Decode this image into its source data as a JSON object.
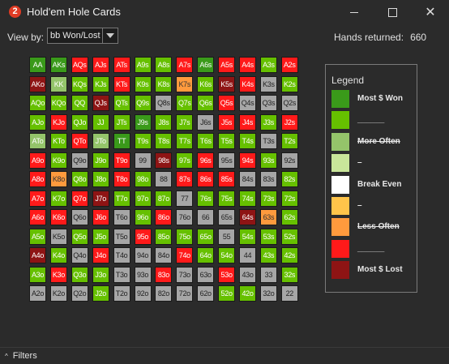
{
  "window": {
    "title": "Hold'em Hole Cards",
    "app_icon": "2"
  },
  "toolbar": {
    "view_by_label": "View by:",
    "view_by_value": "bb Won/Lost",
    "hands_label": "Hands returned:",
    "hands_value": "660"
  },
  "grid": {
    "rows": [
      [
        "AA mw",
        "AKs mw",
        "AQs l",
        "AJs l",
        "ATs l",
        "A9s w",
        "A8s w",
        "A7s l",
        "A6s mw",
        "A5s l",
        "A4s l",
        "A3s w",
        "A2s l"
      ],
      [
        "AKo ml",
        "KK mo",
        "KQs w",
        "KJs w",
        "KTs l",
        "K9s w",
        "K8s w",
        "K7s lo",
        "K6s w",
        "K5s ml",
        "K4s l",
        "K3s gr",
        "K2s w"
      ],
      [
        "AQo w",
        "KQo w",
        "QQ w",
        "QJs ml",
        "QTs w",
        "Q9s w",
        "Q8s gr",
        "Q7s w",
        "Q6s w",
        "Q5s l",
        "Q4s gr",
        "Q3s gr",
        "Q2s gr"
      ],
      [
        "AJo w",
        "KJo l",
        "QJo w",
        "JJ w",
        "JTs w",
        "J9s mw",
        "J8s w",
        "J7s w",
        "J6s gr",
        "J5s l",
        "J4s l",
        "J3s w",
        "J2s l"
      ],
      [
        "ATo mo",
        "KTo w",
        "QTo l",
        "JTo mo",
        "TT mw",
        "T9s w",
        "T8s w",
        "T7s w",
        "T6s w",
        "T5s w",
        "T4s w",
        "T3s gr",
        "T2s w"
      ],
      [
        "A9o l",
        "K9o w",
        "Q9o gr",
        "J9o w",
        "T9o l",
        "99 gr",
        "98s ml",
        "97s w",
        "96s l",
        "95s gr",
        "94s l",
        "93s w",
        "92s gr"
      ],
      [
        "A8o l",
        "K8o lo",
        "Q8o w",
        "J8o w",
        "T8o l",
        "98o w",
        "88 gr",
        "87s l",
        "86s l",
        "85s l",
        "84s gr",
        "83s gr",
        "82s w"
      ],
      [
        "A7o l",
        "K7o w",
        "Q7o l",
        "J7o ml",
        "T7o w",
        "97o w",
        "87o w",
        "77 gr",
        "76s w",
        "75s w",
        "74s w",
        "73s w",
        "72s w"
      ],
      [
        "A6o l",
        "K6o l",
        "Q6o gr",
        "J6o l",
        "T6o gr",
        "96o w",
        "86o l",
        "76o gr",
        "66 gr",
        "65s gr",
        "64s ml",
        "63s lo",
        "62s w"
      ],
      [
        "A5o w",
        "K5o gr",
        "Q5o w",
        "J5o w",
        "T5o gr",
        "95o l",
        "85o w",
        "75o w",
        "65o w",
        "55 gr",
        "54s w",
        "53s w",
        "52s w"
      ],
      [
        "A4o ml",
        "K4o w",
        "Q4o gr",
        "J4o l",
        "T4o gr",
        "94o gr",
        "84o gr",
        "74o l",
        "64o w",
        "54o w",
        "44 gr",
        "43s w",
        "42s w"
      ],
      [
        "A3o w",
        "K3o l",
        "Q3o w",
        "J3o w",
        "T3o gr",
        "93o gr",
        "83o l",
        "73o gr",
        "63o gr",
        "53o l",
        "43o gr",
        "33 gr",
        "32s w"
      ],
      [
        "A2o gr",
        "K2o gr",
        "Q2o gr",
        "J2o w",
        "T2o gr",
        "92o gr",
        "82o gr",
        "72o gr",
        "62o gr",
        "52o w",
        "42o w",
        "32o gr",
        "22 gr"
      ]
    ]
  },
  "legend": {
    "title": "Legend",
    "items": [
      {
        "label": "Most $ Won",
        "color": "#3a9a1a",
        "strike": false
      },
      {
        "label": "______",
        "color": "#66c000",
        "strike": false
      },
      {
        "label": "More Often",
        "color": "#94c46a",
        "strike": true
      },
      {
        "label": "–",
        "color": "#c9e69a",
        "strike": false
      },
      {
        "label": "Break Even",
        "color": "#ffffff",
        "strike": false
      },
      {
        "label": "–",
        "color": "#ffc44a",
        "strike": false
      },
      {
        "label": "Less Often",
        "color": "#ff9a3d",
        "strike": true
      },
      {
        "label": "______",
        "color": "#ff1a1a",
        "strike": false
      },
      {
        "label": "Most $ Lost",
        "color": "#8e1414",
        "strike": false
      }
    ]
  },
  "statusbar": {
    "filters_label": "Filters"
  }
}
